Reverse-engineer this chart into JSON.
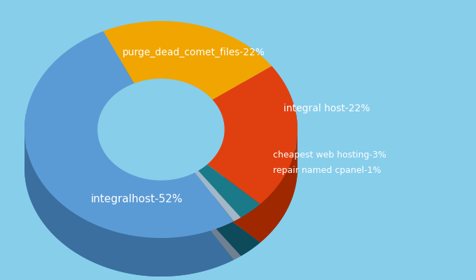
{
  "labels": [
    "integralhost",
    "purge_dead_comet_files",
    "integral host",
    "cheapest web hosting",
    "repair named cpanel"
  ],
  "values": [
    52,
    22,
    22,
    3,
    1
  ],
  "colors": [
    "#5b9bd5",
    "#f0a500",
    "#e04010",
    "#1a7a8a",
    "#a0b8c8"
  ],
  "dark_colors": [
    "#3a6fa0",
    "#c07800",
    "#a02800",
    "#0d4a5a",
    "#708090"
  ],
  "background_color": "#87ceeb",
  "text_color": "#ffffff",
  "label_texts": [
    "integralhost-52%",
    "purge_dead_comet_files-22%",
    "integral host-22%",
    "cheapest web hosting-3%",
    "repair named cpanel-1%"
  ],
  "figsize": [
    6.8,
    4.0
  ],
  "dpi": 100
}
